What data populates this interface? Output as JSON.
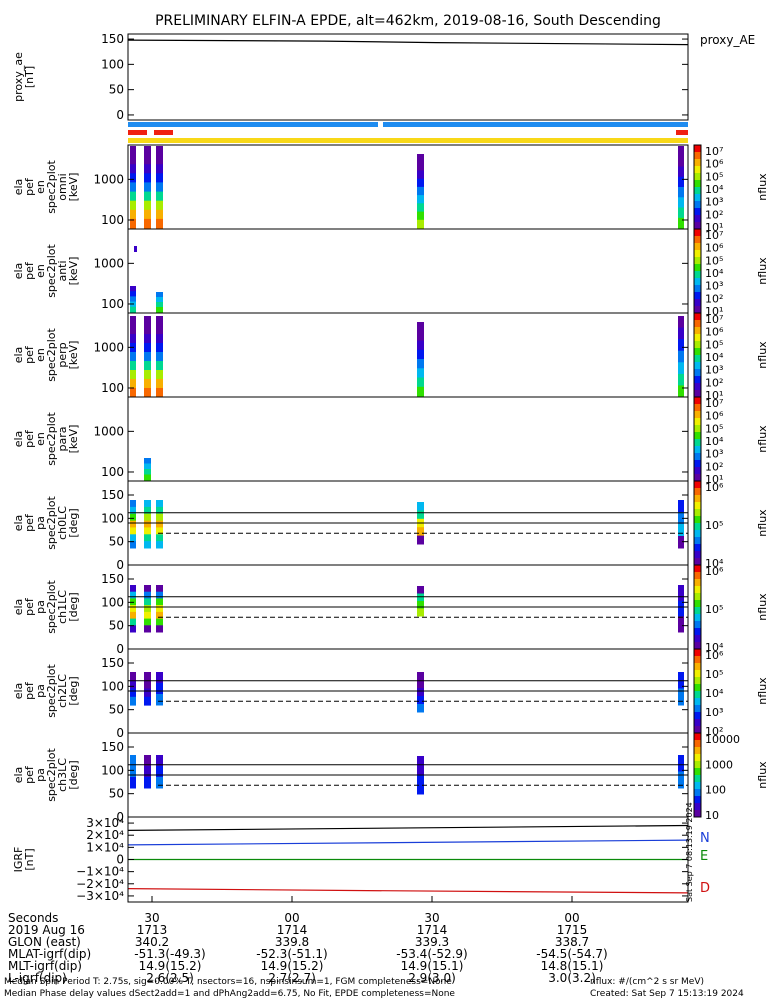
{
  "chart_data": {
    "title": "PRELIMINARY ELFIN-A EPDE, alt=462km, 2019-08-16, South Descending",
    "x_axis": {
      "ticks": [
        "30",
        "00",
        "30",
        "00"
      ],
      "table": [
        {
          "label": "Seconds",
          "values": [
            "30",
            "00",
            "30",
            "00"
          ]
        },
        {
          "label": "2019 Aug 16",
          "values": [
            "1713",
            "1714",
            "1714",
            "1715"
          ]
        },
        {
          "label": "GLON (east)",
          "values": [
            "340.2",
            "339.8",
            "339.3",
            "338.7"
          ]
        },
        {
          "label": "MLAT-igrf(dip)",
          "values": [
            "-51.3(-49.3)",
            "-52.3(-51.1)",
            "-53.4(-52.9)",
            "-54.5(-54.7)"
          ]
        },
        {
          "label": "MLT-igrf(dip)",
          "values": [
            "14.9(15.2)",
            "14.9(15.2)",
            "14.9(15.1)",
            "14.8(15.1)"
          ]
        },
        {
          "label": "L-igrf(dip)",
          "values": [
            "2.6(2.5)",
            "2.7(2.7)",
            "2.9(3.0)",
            "3.0(3.2)"
          ]
        }
      ]
    },
    "panels": [
      {
        "type": "line",
        "ylabel": [
          "proxy_ae",
          "[nT]"
        ],
        "yticks": [
          "150",
          "100",
          "50",
          "0"
        ],
        "ylim": [
          -10,
          160
        ],
        "legend": "proxy_AE",
        "series": [
          {
            "name": "proxy_AE",
            "color": "#000000",
            "x": [
              0,
              0.35,
              0.55,
              1.0
            ],
            "values": [
              148,
              146,
              143,
              139
            ]
          }
        ]
      },
      {
        "type": "heatmap",
        "ylabel": [
          "ela",
          "pef",
          "en",
          "spec2plot",
          "omni",
          "[keV]"
        ],
        "yticks": [
          "1000",
          "100"
        ],
        "yscale": "log",
        "ylim": [
          60,
          7000
        ],
        "colorbar": "nflux"
      },
      {
        "type": "heatmap",
        "ylabel": [
          "ela",
          "pef",
          "en",
          "spec2plot",
          "anti",
          "[keV]"
        ],
        "yticks": [
          "1000",
          "100"
        ],
        "yscale": "log",
        "ylim": [
          60,
          7000
        ],
        "colorbar": "nflux"
      },
      {
        "type": "heatmap",
        "ylabel": [
          "ela",
          "pef",
          "en",
          "spec2plot",
          "perp",
          "[keV]"
        ],
        "yticks": [
          "1000",
          "100"
        ],
        "yscale": "log",
        "ylim": [
          60,
          7000
        ],
        "colorbar": "nflux"
      },
      {
        "type": "heatmap",
        "ylabel": [
          "ela",
          "pef",
          "en",
          "spec2plot",
          "para",
          "[keV]"
        ],
        "yticks": [
          "1000",
          "100"
        ],
        "yscale": "log",
        "ylim": [
          60,
          7000
        ],
        "colorbar": "nflux"
      },
      {
        "type": "heatmap",
        "ylabel": [
          "ela",
          "pef",
          "pa",
          "spec2plot",
          "ch0LC",
          "[deg]"
        ],
        "yticks": [
          "150",
          "100",
          "50",
          "0"
        ],
        "ylim": [
          0,
          180
        ],
        "colorbar": "nflux",
        "hlines": [
          112,
          90
        ],
        "dashed": [
          68
        ]
      },
      {
        "type": "heatmap",
        "ylabel": [
          "ela",
          "pef",
          "pa",
          "spec2plot",
          "ch1LC",
          "[deg]"
        ],
        "yticks": [
          "150",
          "100",
          "50",
          "0"
        ],
        "ylim": [
          0,
          180
        ],
        "colorbar": "nflux",
        "hlines": [
          112,
          90
        ],
        "dashed": [
          68
        ]
      },
      {
        "type": "heatmap",
        "ylabel": [
          "ela",
          "pef",
          "pa",
          "spec2plot",
          "ch2LC",
          "[deg]"
        ],
        "yticks": [
          "150",
          "100",
          "50",
          "0"
        ],
        "ylim": [
          0,
          180
        ],
        "colorbar": "nflux",
        "hlines": [
          112,
          90
        ],
        "dashed": [
          68
        ]
      },
      {
        "type": "heatmap",
        "ylabel": [
          "ela",
          "pef",
          "pa",
          "spec2plot",
          "ch3LC",
          "[deg]"
        ],
        "yticks": [
          "150",
          "100",
          "50",
          "0"
        ],
        "ylim": [
          0,
          180
        ],
        "colorbar": "nflux",
        "hlines": [
          112,
          90
        ],
        "dashed": [
          68
        ]
      },
      {
        "type": "line",
        "ylabel": [
          "IGRF",
          "[nT]"
        ],
        "yticks": [
          "3×10⁴",
          "2×10⁴",
          "1×10⁴",
          "0",
          "−1×10⁴",
          "−2×10⁴",
          "−3×10⁴"
        ],
        "ylim": [
          -35000,
          35000
        ],
        "series": [
          {
            "name": "N",
            "color": "#1a3ed8",
            "x": [
              0,
              1
            ],
            "values": [
              12000,
              16000
            ]
          },
          {
            "name": "E",
            "color": "#0a8a0a",
            "x": [
              0,
              0.55,
              1.0
            ],
            "values": [
              0,
              0,
              0
            ]
          },
          {
            "name": "D",
            "color": "#d01010",
            "x": [
              0,
              0.4,
              1.0
            ],
            "values": [
              -24000,
              -25500,
              -27500
            ]
          },
          {
            "name": "",
            "color": "#000000",
            "x": [
              0,
              1
            ],
            "values": [
              24000,
              28000
            ]
          }
        ]
      }
    ],
    "colorbars": [
      [
        "10⁷",
        "10⁶",
        "10⁵",
        "10⁴",
        "10³",
        "10²",
        "10¹"
      ],
      [
        "10⁷",
        "10⁶",
        "10⁵",
        "10⁴",
        "10³",
        "10²",
        "10¹"
      ],
      [
        "10⁷",
        "10⁶",
        "10⁵",
        "10⁴",
        "10³",
        "10²",
        "10¹"
      ],
      [
        "10⁷",
        "10⁶",
        "10⁵",
        "10⁴",
        "10³",
        "10²",
        "10¹"
      ],
      [
        "10⁶",
        "10⁵",
        "10⁴"
      ],
      [
        "10⁶",
        "10⁵",
        "10⁴"
      ],
      [
        "10⁶",
        "10⁵",
        "10⁴",
        "10³",
        "10²"
      ],
      [
        "10000",
        "1000",
        "100",
        "10"
      ]
    ],
    "side_stamp": "Sat Sep 7 08:13:19 2024",
    "footer": {
      "left_line1": "Median Spin Period T: 2.75s, sig=0.00% T, nsectors=16, nspinsinsum=1, FGM completeness=None",
      "left_line2": "Median Phase delay values dSect2add=1 and dPhAng2add=6.75, No Fit, EPDE completeness=None",
      "right_line1": "nflux: #/(cm^2 s sr MeV)",
      "right_line2": "Created: Sat Sep  7 15:13:19 2024"
    }
  },
  "colors": {
    "spectrum": [
      "#5a00a0",
      "#3800c8",
      "#0018f0",
      "#0078f0",
      "#00b8f0",
      "#00d890",
      "#30e000",
      "#a8ec00",
      "#f0f000",
      "#f8b000",
      "#f86800",
      "#f00000"
    ],
    "bar_blue": "#1f8cf0",
    "bar_red": "#f02010",
    "bar_yellow": "#f8d818"
  }
}
